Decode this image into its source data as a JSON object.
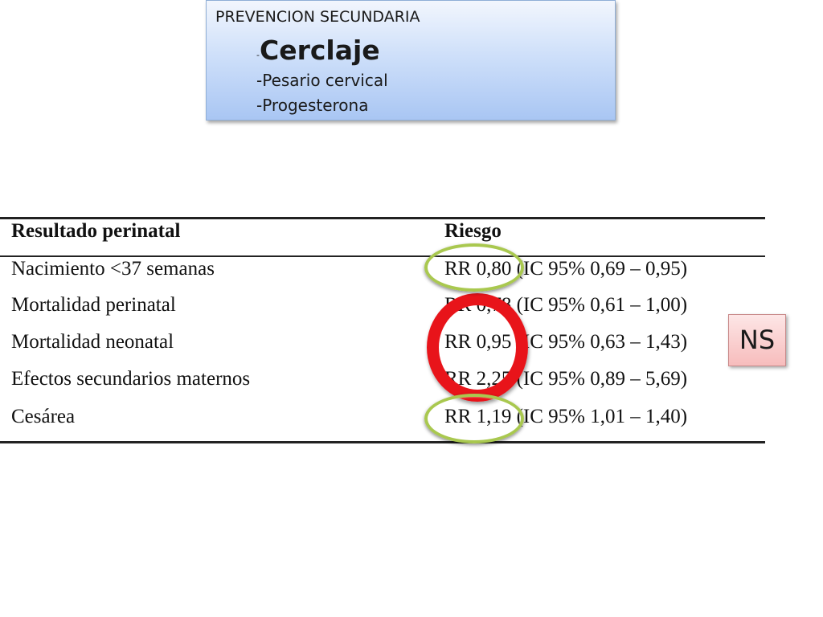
{
  "topbox": {
    "title": "PREVENCION SECUNDARIA",
    "item1_dash": "-",
    "item1_text": "Cerclaje",
    "item2": "-Pesario cervical",
    "item3": "-Progesterona"
  },
  "table": {
    "headers": [
      "Resultado perinatal",
      "Riesgo"
    ],
    "rows": [
      [
        "Nacimiento <37 semanas",
        "RR 0,80 (IC 95% 0,69 – 0,95)"
      ],
      [
        "Mortalidad perinatal",
        "RR 0,78 (IC 95% 0,61 – 1,00)"
      ],
      [
        "Mortalidad neonatal",
        "RR 0,95 (IC 95% 0,63 – 1,43)"
      ],
      [
        "Efectos secundarios maternos",
        "RR 2,25 (IC 95% 0,89 – 5,69)"
      ],
      [
        "Cesárea",
        "RR 1,19 (IC 95% 1,01 – 1,40)"
      ]
    ]
  },
  "ns_label": "NS",
  "colors": {
    "highlight_green": "#a9c84f",
    "highlight_red": "#e8141a"
  }
}
